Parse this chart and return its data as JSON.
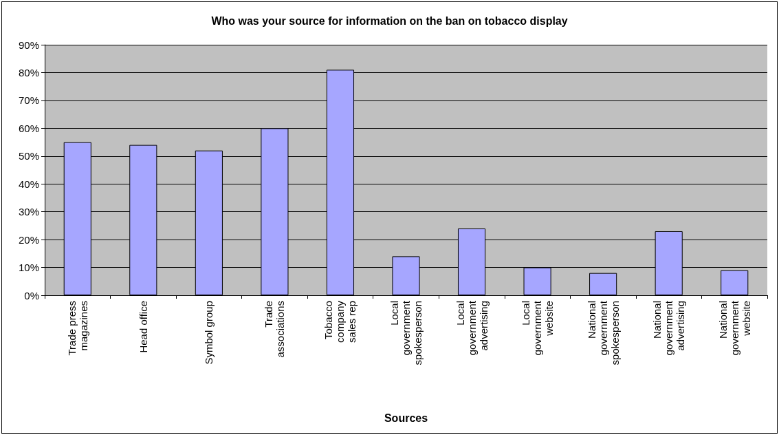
{
  "chart_data": {
    "type": "bar",
    "title": "Who was your source for information on the ban on tobacco display",
    "xlabel": "Sources",
    "categories": [
      "Trade press magazines",
      "Head office",
      "Symbol group",
      "Trade associations",
      "Tobacco company sales rep",
      "Local government spokesperson",
      "Local government advertising",
      "Local government website",
      "National government spokesperson",
      "National government advertising",
      "National government website"
    ],
    "values": [
      55,
      54,
      52,
      60,
      81,
      14,
      24,
      10,
      8,
      23,
      9
    ],
    "color": "#a6a6ff",
    "ylim": [
      0,
      90
    ],
    "yticks": [
      {
        "value": 0,
        "label": "0%"
      },
      {
        "value": 10,
        "label": "10%"
      },
      {
        "value": 20,
        "label": "20%"
      },
      {
        "value": 30,
        "label": "30%"
      },
      {
        "value": 40,
        "label": "40%"
      },
      {
        "value": 50,
        "label": "50%"
      },
      {
        "value": 60,
        "label": "60%"
      },
      {
        "value": 70,
        "label": "70%"
      },
      {
        "value": 80,
        "label": "80%"
      },
      {
        "value": 90,
        "label": "90%"
      }
    ],
    "grid": "y"
  }
}
